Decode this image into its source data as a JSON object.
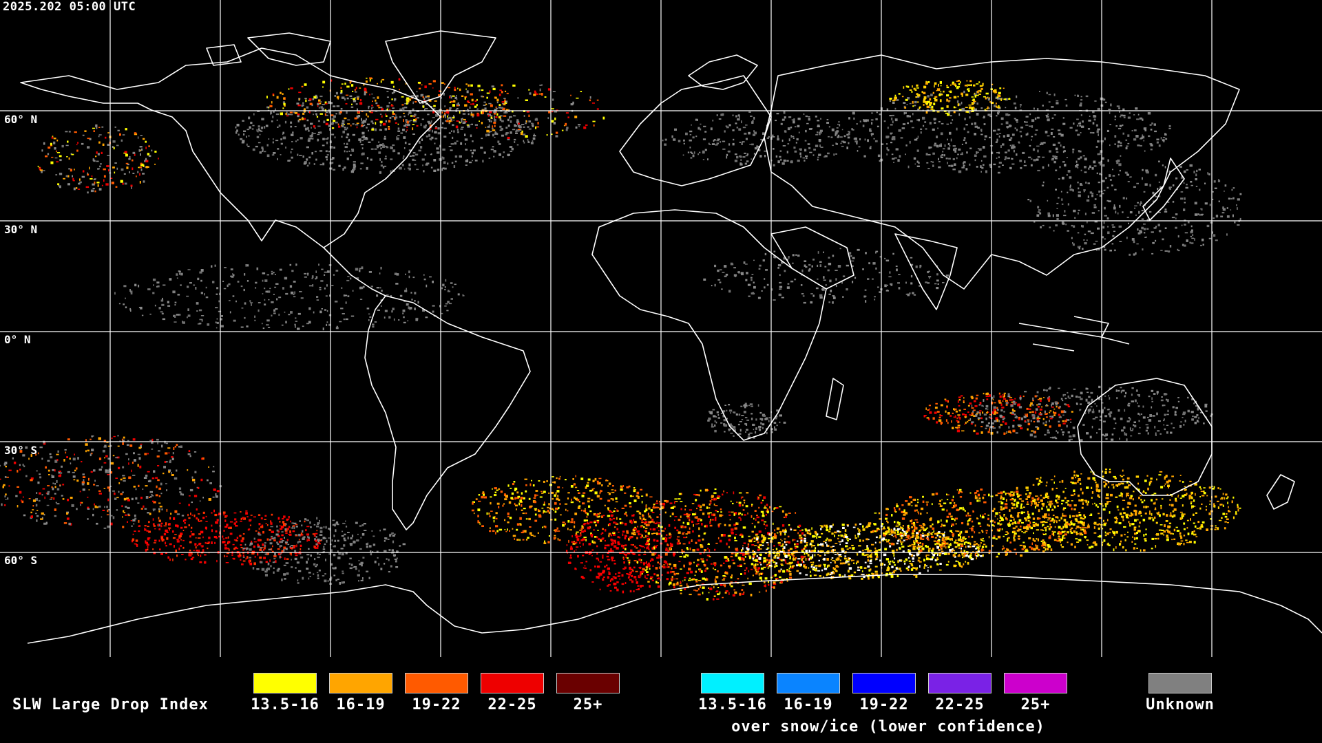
{
  "timestamp": "2025.202 05:00 UTC",
  "lat_labels": [
    "60° N",
    "30° N",
    "0° N",
    "30° S",
    "60° S"
  ],
  "legend": {
    "title": "SLW Large Drop Index",
    "primary": [
      {
        "label": "13.5-16",
        "color": "#ffff00"
      },
      {
        "label": "16-19",
        "color": "#ffa500"
      },
      {
        "label": "19-22",
        "color": "#ff5a00"
      },
      {
        "label": "22-25",
        "color": "#ee0000"
      },
      {
        "label": "25+",
        "color": "#6a0000"
      }
    ],
    "snow_ice": [
      {
        "label": "13.5-16",
        "color": "#00f0ff"
      },
      {
        "label": "16-19",
        "color": "#0a84ff"
      },
      {
        "label": "19-22",
        "color": "#0000ff"
      },
      {
        "label": "22-25",
        "color": "#7a22e6"
      },
      {
        "label": "25+",
        "color": "#cc00cc"
      }
    ],
    "snow_ice_caption": "over snow/ice (lower confidence)",
    "unknown": {
      "label": "Unknown",
      "color": "#808080"
    }
  },
  "colors": {
    "background": "#000000",
    "grid": "#ffffff",
    "coastline": "#ffffff"
  }
}
